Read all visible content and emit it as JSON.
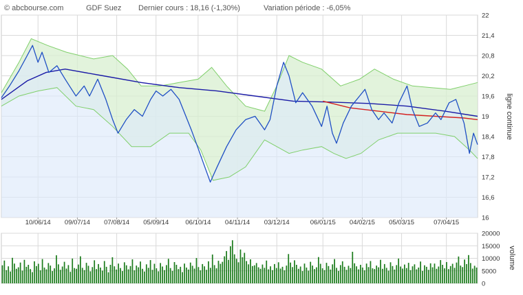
{
  "header": {
    "source": "© abcbourse.com",
    "stock": "GDF Suez",
    "last_price": "Dernier cours : 18,16 (-1,30%)",
    "variation": "Variation période : -6,05%"
  },
  "colors": {
    "price": "#1f4fc4",
    "bollinger_line": "#7fcf6a",
    "bollinger_fill": "#d8efd0",
    "price_fill": "#dde9fa",
    "ma_long": "#1a1aa6",
    "ma_short": "#d42020",
    "volume": "#1e7d1e",
    "grid": "#d9d9d9"
  },
  "chart_data": [
    {
      "type": "line",
      "ylabel": "ligne continue",
      "ylim": [
        16,
        22
      ],
      "y_ticks": [
        "16",
        "16,6",
        "17,2",
        "17,8",
        "18,4",
        "19",
        "19,6",
        "20,2",
        "20,8",
        "21,4",
        "22"
      ],
      "x_ticks": [
        "10/06/14",
        "09/07/14",
        "07/08/14",
        "05/09/14",
        "06/10/14",
        "04/11/14",
        "03/12/14",
        "06/01/15",
        "04/02/15",
        "05/03/15",
        "07/04/15"
      ],
      "x_range": [
        "2014-05-14",
        "2015-04-30"
      ],
      "series": [
        {
          "role": "price",
          "points": [
            [
              "2014-05-14",
              19.55
            ],
            [
              "2014-05-20",
              19.9
            ],
            [
              "2014-05-27",
              20.35
            ],
            [
              "2014-06-02",
              20.8
            ],
            [
              "2014-06-06",
              21.1
            ],
            [
              "2014-06-10",
              20.6
            ],
            [
              "2014-06-13",
              20.9
            ],
            [
              "2014-06-18",
              20.3
            ],
            [
              "2014-06-24",
              20.5
            ],
            [
              "2014-06-30",
              20.1
            ],
            [
              "2014-07-04",
              19.85
            ],
            [
              "2014-07-08",
              19.6
            ],
            [
              "2014-07-14",
              19.9
            ],
            [
              "2014-07-18",
              19.6
            ],
            [
              "2014-07-24",
              20.1
            ],
            [
              "2014-07-30",
              19.5
            ],
            [
              "2014-08-04",
              18.9
            ],
            [
              "2014-08-08",
              18.5
            ],
            [
              "2014-08-14",
              18.9
            ],
            [
              "2014-08-20",
              19.2
            ],
            [
              "2014-08-26",
              19.0
            ],
            [
              "2014-09-01",
              19.5
            ],
            [
              "2014-09-05",
              19.75
            ],
            [
              "2014-09-10",
              19.6
            ],
            [
              "2014-09-16",
              19.8
            ],
            [
              "2014-09-22",
              19.5
            ],
            [
              "2014-09-26",
              19.1
            ],
            [
              "2014-10-01",
              18.6
            ],
            [
              "2014-10-06",
              18.05
            ],
            [
              "2014-10-10",
              17.6
            ],
            [
              "2014-10-15",
              17.05
            ],
            [
              "2014-10-20",
              17.5
            ],
            [
              "2014-10-27",
              18.1
            ],
            [
              "2014-11-03",
              18.6
            ],
            [
              "2014-11-10",
              18.9
            ],
            [
              "2014-11-17",
              19.0
            ],
            [
              "2014-11-24",
              18.6
            ],
            [
              "2014-11-28",
              18.9
            ],
            [
              "2014-12-03",
              19.9
            ],
            [
              "2014-12-08",
              20.6
            ],
            [
              "2014-12-12",
              20.2
            ],
            [
              "2014-12-17",
              19.4
            ],
            [
              "2014-12-22",
              19.7
            ],
            [
              "2014-12-29",
              19.3
            ],
            [
              "2015-01-05",
              18.7
            ],
            [
              "2015-01-09",
              19.3
            ],
            [
              "2015-01-13",
              18.5
            ],
            [
              "2015-01-16",
              18.2
            ],
            [
              "2015-01-21",
              18.8
            ],
            [
              "2015-01-27",
              19.3
            ],
            [
              "2015-02-02",
              19.6
            ],
            [
              "2015-02-06",
              19.8
            ],
            [
              "2015-02-11",
              19.2
            ],
            [
              "2015-02-16",
              18.9
            ],
            [
              "2015-02-20",
              19.1
            ],
            [
              "2015-02-26",
              18.8
            ],
            [
              "2015-03-03",
              19.4
            ],
            [
              "2015-03-09",
              19.9
            ],
            [
              "2015-03-13",
              19.2
            ],
            [
              "2015-03-18",
              18.7
            ],
            [
              "2015-03-24",
              18.8
            ],
            [
              "2015-03-30",
              19.1
            ],
            [
              "2015-04-03",
              18.9
            ],
            [
              "2015-04-09",
              19.4
            ],
            [
              "2015-04-14",
              19.5
            ],
            [
              "2015-04-20",
              18.8
            ],
            [
              "2015-04-24",
              17.9
            ],
            [
              "2015-04-27",
              18.5
            ],
            [
              "2015-04-30",
              18.16
            ]
          ]
        },
        {
          "role": "ma_long",
          "points": [
            [
              "2014-05-14",
              19.5
            ],
            [
              "2014-06-02",
              20.05
            ],
            [
              "2014-06-16",
              20.3
            ],
            [
              "2014-06-30",
              20.4
            ],
            [
              "2014-07-28",
              20.2
            ],
            [
              "2014-08-25",
              20.0
            ],
            [
              "2014-09-22",
              19.85
            ],
            [
              "2014-10-20",
              19.75
            ],
            [
              "2014-11-17",
              19.6
            ],
            [
              "2014-12-15",
              19.45
            ],
            [
              "2015-01-12",
              19.42
            ],
            [
              "2015-02-09",
              19.38
            ],
            [
              "2015-03-09",
              19.3
            ],
            [
              "2015-04-06",
              19.15
            ],
            [
              "2015-04-30",
              19.0
            ]
          ]
        },
        {
          "role": "ma_short",
          "points": [
            [
              "2015-01-06",
              19.45
            ],
            [
              "2015-01-26",
              19.25
            ],
            [
              "2015-02-16",
              19.15
            ],
            [
              "2015-03-09",
              19.05
            ],
            [
              "2015-03-30",
              19.0
            ],
            [
              "2015-04-20",
              18.95
            ],
            [
              "2015-04-30",
              18.9
            ]
          ]
        },
        {
          "role": "bollinger_upper",
          "points": [
            [
              "2014-05-14",
              19.7
            ],
            [
              "2014-05-27",
              20.6
            ],
            [
              "2014-06-05",
              21.3
            ],
            [
              "2014-06-17",
              21.1
            ],
            [
              "2014-07-01",
              20.9
            ],
            [
              "2014-07-21",
              20.7
            ],
            [
              "2014-08-04",
              20.8
            ],
            [
              "2014-08-15",
              20.4
            ],
            [
              "2014-08-25",
              19.9
            ],
            [
              "2014-09-08",
              19.9
            ],
            [
              "2014-09-22",
              20.0
            ],
            [
              "2014-10-06",
              20.1
            ],
            [
              "2014-10-16",
              20.45
            ],
            [
              "2014-10-27",
              19.9
            ],
            [
              "2014-11-10",
              19.3
            ],
            [
              "2014-11-24",
              19.15
            ],
            [
              "2014-12-03",
              19.9
            ],
            [
              "2014-12-12",
              20.8
            ],
            [
              "2014-12-22",
              20.6
            ],
            [
              "2015-01-05",
              20.4
            ],
            [
              "2015-01-19",
              19.9
            ],
            [
              "2015-02-02",
              20.1
            ],
            [
              "2015-02-13",
              20.4
            ],
            [
              "2015-02-27",
              20.1
            ],
            [
              "2015-03-13",
              19.9
            ],
            [
              "2015-03-27",
              19.85
            ],
            [
              "2015-04-10",
              19.8
            ],
            [
              "2015-04-20",
              19.9
            ],
            [
              "2015-04-30",
              20.0
            ]
          ]
        },
        {
          "role": "bollinger_lower",
          "points": [
            [
              "2014-05-14",
              19.3
            ],
            [
              "2014-05-27",
              19.6
            ],
            [
              "2014-06-10",
              19.75
            ],
            [
              "2014-06-24",
              19.85
            ],
            [
              "2014-07-08",
              19.3
            ],
            [
              "2014-07-21",
              19.2
            ],
            [
              "2014-08-04",
              18.7
            ],
            [
              "2014-08-18",
              18.1
            ],
            [
              "2014-09-01",
              18.1
            ],
            [
              "2014-09-15",
              18.5
            ],
            [
              "2014-09-29",
              18.5
            ],
            [
              "2014-10-08",
              18.0
            ],
            [
              "2014-10-17",
              17.1
            ],
            [
              "2014-10-29",
              17.2
            ],
            [
              "2014-11-10",
              17.5
            ],
            [
              "2014-11-24",
              18.3
            ],
            [
              "2014-12-03",
              18.1
            ],
            [
              "2014-12-12",
              17.9
            ],
            [
              "2014-12-22",
              18.0
            ],
            [
              "2015-01-05",
              18.1
            ],
            [
              "2015-01-14",
              17.9
            ],
            [
              "2015-01-23",
              17.75
            ],
            [
              "2015-02-03",
              17.9
            ],
            [
              "2015-02-16",
              18.3
            ],
            [
              "2015-03-02",
              18.5
            ],
            [
              "2015-03-16",
              18.5
            ],
            [
              "2015-03-30",
              18.5
            ],
            [
              "2015-04-13",
              18.4
            ],
            [
              "2015-04-24",
              18.0
            ],
            [
              "2015-04-30",
              17.75
            ]
          ]
        }
      ]
    },
    {
      "type": "bar",
      "ylabel": "volume",
      "ylim": [
        0,
        20000
      ],
      "y_ticks": [
        "0",
        "5000",
        "10000",
        "15000",
        "20000"
      ],
      "x_range": [
        "2014-05-14",
        "2015-04-30"
      ],
      "values": [
        7200,
        9100,
        5300,
        6800,
        4700,
        10200,
        7900,
        5800,
        6400,
        8300,
        5100,
        9400,
        6600,
        7400,
        5700,
        4500,
        8800,
        6900,
        7800,
        5200,
        9700,
        6300,
        5600,
        8100,
        7100,
        4900,
        6000,
        11200,
        7600,
        5400,
        6700,
        8600,
        5900,
        7300,
        4600,
        9900,
        6100,
        5800,
        7500,
        10800,
        6200,
        5300,
        8200,
        7000,
        4800,
        6500,
        9200,
        5700,
        7700,
        6300,
        5100,
        8900,
        6600,
        4400,
        7400,
        10400,
        6800,
        5500,
        7900,
        6100,
        4900,
        8400,
        7200,
        5600,
        6900,
        9600,
        5200,
        7100,
        6400,
        8700,
        5800,
        4700,
        7600,
        6200,
        9300,
        5400,
        7800,
        6000,
        4800,
        8100,
        6700,
        5300,
        7300,
        9800,
        6100,
        5000,
        8500,
        7400,
        5700,
        6600,
        4500,
        7900,
        6300,
        5500,
        8300,
        7000,
        5900,
        10100,
        6500,
        5200,
        7700,
        6800,
        5400,
        8800,
        6200,
        11500,
        7300,
        6000,
        9000,
        7800,
        8600,
        10800,
        12900,
        9400,
        14800,
        17200,
        11600,
        9800,
        8400,
        13500,
        10400,
        12200,
        8900,
        7600,
        9600,
        6900,
        7200,
        8100,
        6400,
        5800,
        7500,
        6200,
        9100,
        5600,
        6800,
        5300,
        7700,
        6100,
        8400,
        5900,
        6600,
        5200,
        7100,
        11700,
        8300,
        6500,
        9200,
        7400,
        5800,
        6700,
        4900,
        7900,
        6300,
        5100,
        8600,
        7100,
        5700,
        6400,
        10500,
        7800,
        6000,
        5300,
        8200,
        6900,
        5500,
        7600,
        9700,
        6200,
        5000,
        7300,
        8800,
        6600,
        5400,
        7000,
        6100,
        12600,
        8000,
        6800,
        5600,
        7400,
        6300,
        5200,
        7900,
        6500,
        8900,
        6000,
        5700,
        7100,
        6400,
        9400,
        5800,
        7700,
        6200,
        5100,
        8400,
        6900,
        5500,
        7300,
        9900,
        6700,
        5900,
        7500,
        6100,
        8200,
        5300,
        6800,
        7600,
        5600,
        6300,
        8700,
        5000,
        7200,
        6600,
        5400,
        8000,
        6400,
        7900,
        5800,
        6700,
        9300,
        7400,
        6000,
        8500,
        5700,
        6900,
        7800,
        6200,
        8300,
        10700,
        7100,
        6500,
        9500,
        7700,
        11300,
        8100,
        5900,
        7000,
        6300
      ]
    }
  ]
}
